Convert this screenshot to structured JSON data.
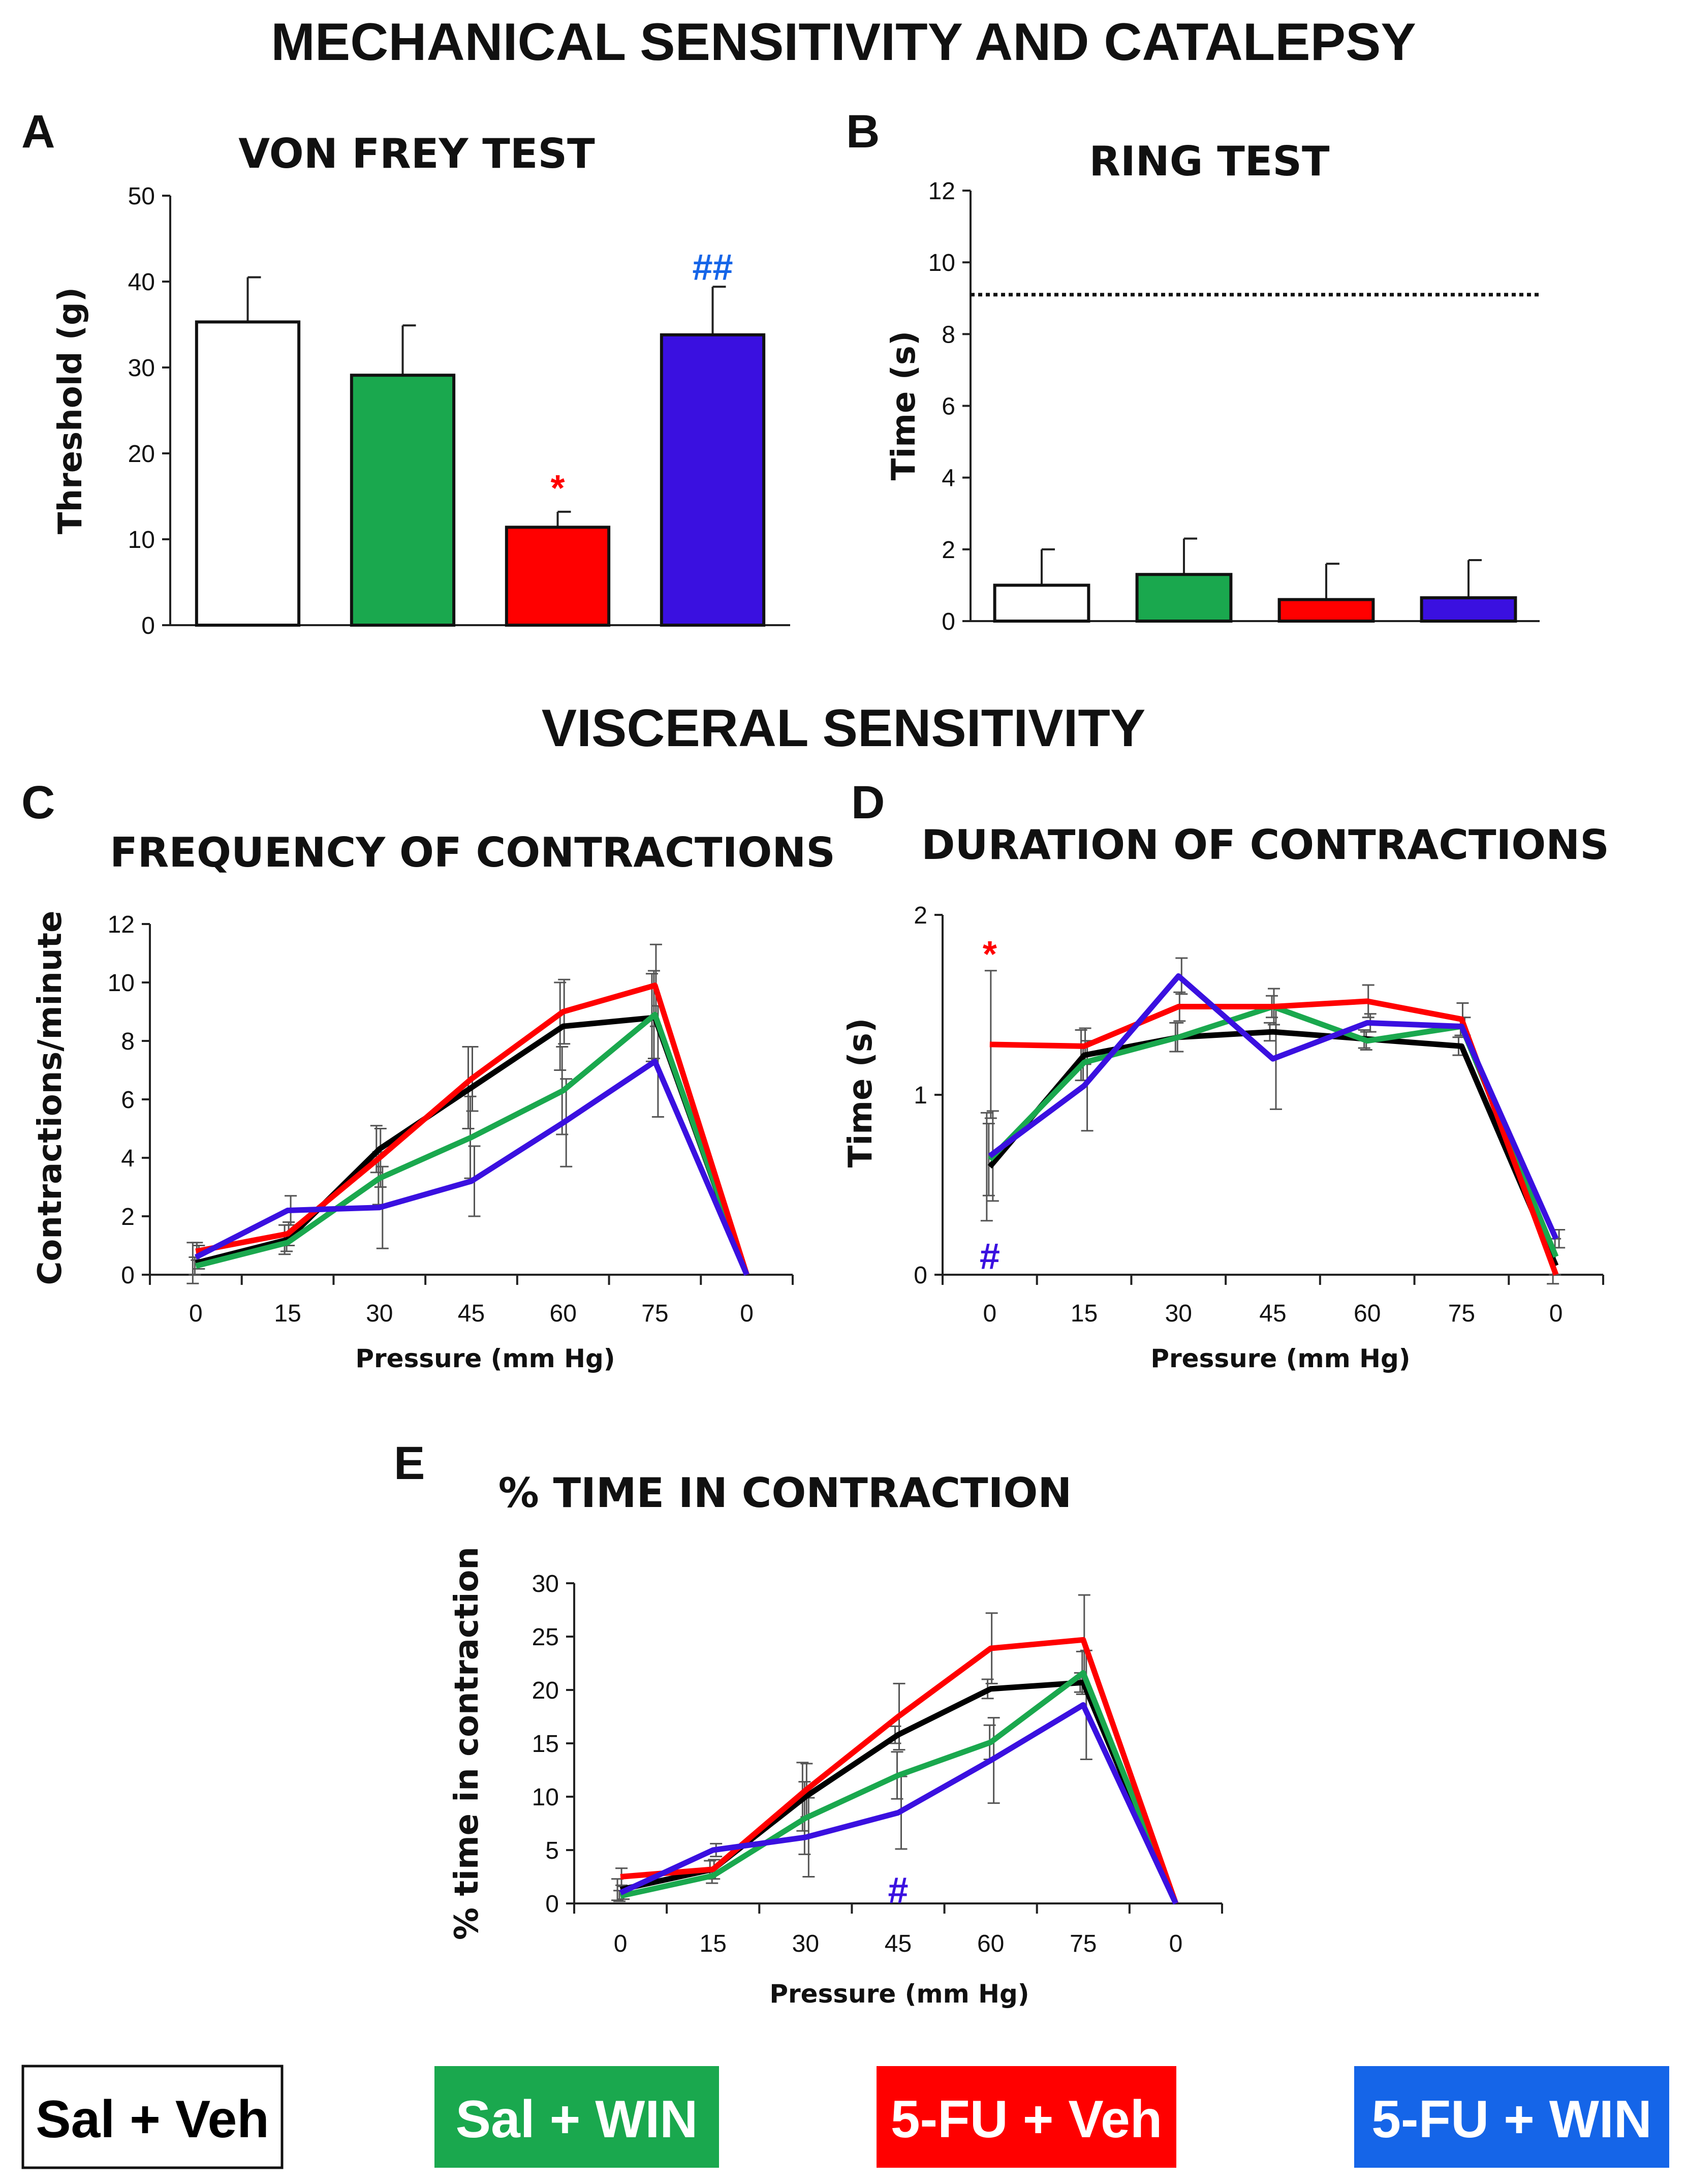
{
  "figure": {
    "title_top": "MECHANICAL SENSITIVITY AND CATALEPSY",
    "title_mid": "VISCERAL SENSITIVITY"
  },
  "legend": [
    {
      "label": "Sal + Veh",
      "color": "#000000",
      "bg": "#ffffff",
      "text_color": "#000000"
    },
    {
      "label": "Sal + WIN",
      "color": "#1aa84e",
      "bg": "#1aa84e",
      "text_color": "#ffffff"
    },
    {
      "label": "5-FU + Veh",
      "color": "#ff0000",
      "bg": "#ff0000",
      "text_color": "#ffffff"
    },
    {
      "label": "5-FU + WIN",
      "color": "#3a10e0",
      "bg": "#1565e8",
      "text_color": "#ffffff"
    }
  ],
  "chart_data": [
    {
      "id": "A",
      "letter": "A",
      "type": "bar",
      "title": "VON FREY TEST",
      "xlabel": "",
      "ylabel": "Threshold (g)",
      "ylim": [
        0,
        50
      ],
      "yticks": [
        0,
        10,
        20,
        30,
        40,
        50
      ],
      "series": [
        {
          "groups": [
            "Sal + Veh",
            "Sal + WIN",
            "5-FU + Veh",
            "5-FU + WIN"
          ],
          "values": [
            35.3,
            29.1,
            11.4,
            33.8
          ],
          "errors": [
            5.2,
            5.8,
            1.8,
            5.6
          ],
          "colors": [
            "#ffffff",
            "#1aa84e",
            "#ff0000",
            "#3a10e0"
          ]
        }
      ],
      "annotations": [
        {
          "text": "*",
          "bar": 2,
          "color": "#ff0000",
          "value": 15.8
        },
        {
          "text": "##",
          "bar": 3,
          "color": "#1565e8",
          "value": 41.5
        }
      ]
    },
    {
      "id": "B",
      "letter": "B",
      "type": "bar",
      "title": "RING TEST",
      "xlabel": "",
      "ylabel": "Time (s)",
      "ylim": [
        0,
        12
      ],
      "yticks": [
        0,
        2,
        4,
        6,
        8,
        10,
        12
      ],
      "reference_line": 9.1,
      "series": [
        {
          "groups": [
            "Sal + Veh",
            "Sal + WIN",
            "5-FU + Veh",
            "5-FU + WIN"
          ],
          "values": [
            1.0,
            1.3,
            0.6,
            0.65
          ],
          "errors": [
            1.0,
            1.0,
            1.0,
            1.05
          ],
          "colors": [
            "#ffffff",
            "#1aa84e",
            "#ff0000",
            "#3a10e0"
          ]
        }
      ]
    },
    {
      "id": "C",
      "letter": "C",
      "type": "line",
      "title": "FREQUENCY OF CONTRACTIONS",
      "xlabel": "Pressure (mm Hg)",
      "ylabel": "Contractions/minute",
      "categories": [
        "0",
        "15",
        "30",
        "45",
        "60",
        "75",
        "0"
      ],
      "ylim": [
        0,
        12
      ],
      "yticks": [
        0,
        2,
        4,
        6,
        8,
        10,
        12
      ],
      "series": [
        {
          "name": "Sal + Veh",
          "color": "#000000",
          "values": [
            0.4,
            1.2,
            4.3,
            6.4,
            8.5,
            8.8,
            0.0
          ],
          "errors": [
            0.7,
            0.5,
            0.8,
            1.4,
            1.5,
            1.5,
            0
          ]
        },
        {
          "name": "Sal + WIN",
          "color": "#1aa84e",
          "values": [
            0.3,
            1.1,
            3.3,
            4.7,
            6.3,
            8.9,
            0.0
          ],
          "errors": [
            0.3,
            0.3,
            0.9,
            1.4,
            1.5,
            1.5,
            0
          ]
        },
        {
          "name": "5-FU + Veh",
          "color": "#ff0000",
          "values": [
            0.8,
            1.4,
            4.0,
            6.7,
            9.0,
            9.9,
            0.0
          ],
          "errors": [
            0.3,
            0.4,
            1.0,
            1.1,
            1.1,
            1.4,
            0
          ]
        },
        {
          "name": "5-FU + WIN",
          "color": "#3a10e0",
          "values": [
            0.6,
            2.2,
            2.3,
            3.2,
            5.2,
            7.3,
            0.0
          ],
          "errors": [
            0.4,
            0.5,
            1.4,
            1.2,
            1.5,
            1.9,
            0
          ]
        }
      ]
    },
    {
      "id": "D",
      "letter": "D",
      "type": "line",
      "title": "DURATION OF CONTRACTIONS",
      "xlabel": "Pressure (mm Hg)",
      "ylabel": "Time (s)",
      "categories": [
        "0",
        "15",
        "30",
        "45",
        "60",
        "75",
        "0"
      ],
      "ylim": [
        0,
        2
      ],
      "yticks": [
        0,
        1,
        2
      ],
      "series": [
        {
          "name": "Sal + Veh",
          "color": "#000000",
          "values": [
            0.6,
            1.22,
            1.32,
            1.35,
            1.31,
            1.27,
            0.05
          ],
          "errors": [
            0.3,
            0.14,
            0.08,
            0.05,
            0.05,
            0.05,
            0.1
          ]
        },
        {
          "name": "Sal + WIN",
          "color": "#1aa84e",
          "values": [
            0.64,
            1.18,
            1.32,
            1.49,
            1.3,
            1.38,
            0.1
          ],
          "errors": [
            0.2,
            0.1,
            0.08,
            0.06,
            0.05,
            0.05,
            0.1
          ]
        },
        {
          "name": "5-FU + Veh",
          "color": "#ff0000",
          "values": [
            1.28,
            1.27,
            1.49,
            1.49,
            1.52,
            1.42,
            0.0
          ],
          "errors": [
            0.41,
            0.1,
            0.08,
            0.1,
            0.09,
            0.09,
            0
          ]
        },
        {
          "name": "5-FU + WIN",
          "color": "#3a10e0",
          "values": [
            0.66,
            1.05,
            1.66,
            1.2,
            1.4,
            1.38,
            0.2
          ],
          "errors": [
            0.25,
            0.25,
            0.1,
            0.28,
            0.05,
            0.05,
            0.05
          ]
        }
      ],
      "annotations": [
        {
          "text": "*",
          "category": 0,
          "value": 1.78,
          "color": "#ff0000"
        },
        {
          "text": "#",
          "category": 0,
          "value": 0.1,
          "color": "#3a10e0"
        }
      ]
    },
    {
      "id": "E",
      "letter": "E",
      "type": "line",
      "title": "% TIME IN CONTRACTION",
      "xlabel": "Pressure (mm Hg)",
      "ylabel": "% time in contraction",
      "categories": [
        "0",
        "15",
        "30",
        "45",
        "60",
        "75",
        "0"
      ],
      "ylim": [
        0,
        30
      ],
      "yticks": [
        0,
        5,
        10,
        15,
        20,
        25,
        30
      ],
      "series": [
        {
          "name": "Sal + Veh",
          "color": "#000000",
          "values": [
            1.3,
            3.2,
            10.0,
            15.8,
            20.1,
            20.7,
            0.0
          ],
          "errors": [
            1.0,
            0.8,
            3.2,
            0.8,
            0.9,
            0.9,
            0
          ]
        },
        {
          "name": "Sal + WIN",
          "color": "#1aa84e",
          "values": [
            0.7,
            2.6,
            8.0,
            12.0,
            15.1,
            21.6,
            0.0
          ],
          "errors": [
            0.5,
            0.7,
            3.4,
            2.2,
            1.6,
            2.0,
            0
          ]
        },
        {
          "name": "5-FU + Veh",
          "color": "#ff0000",
          "values": [
            2.5,
            3.2,
            10.6,
            17.5,
            23.9,
            24.7,
            0.0
          ],
          "errors": [
            0.8,
            0.9,
            2.5,
            3.1,
            3.3,
            4.2,
            0
          ]
        },
        {
          "name": "5-FU + WIN",
          "color": "#3a10e0",
          "values": [
            1.0,
            5.0,
            6.2,
            8.5,
            13.4,
            18.6,
            0.0
          ],
          "errors": [
            0.6,
            0.6,
            3.7,
            3.4,
            4.0,
            5.1,
            0
          ]
        }
      ],
      "annotations": [
        {
          "text": "#",
          "category": 3,
          "value": 1.2,
          "color": "#3a10e0"
        }
      ]
    }
  ]
}
